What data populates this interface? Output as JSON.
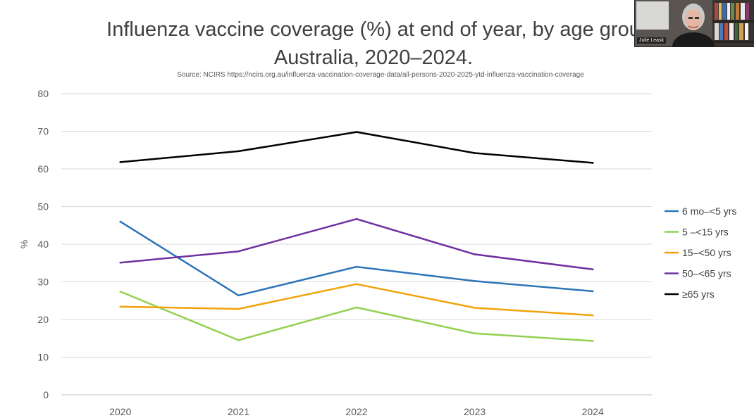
{
  "slide": {
    "title_line1": "Influenza vaccine coverage (%) at end of year, by age grou",
    "title_line2": "Australia, 2020–2024.",
    "source": "Source: NCIRS https://ncirs.org.au/influenza-vaccination-coverage-data/all-persons-2020-2025-ytd-influenza-vaccination-coverage"
  },
  "webcam": {
    "participant_name": "Julie Leask",
    "icon": "participant-video-icon"
  },
  "chart_data": {
    "type": "line",
    "title": "Influenza vaccine coverage (%) at end of year, by age grou Australia, 2020–2024.",
    "xlabel": "",
    "ylabel": "%",
    "categories": [
      "2020",
      "2021",
      "2022",
      "2023",
      "2024"
    ],
    "ylim": [
      0,
      80
    ],
    "yticks": [
      0,
      10,
      20,
      30,
      40,
      50,
      60,
      70,
      80
    ],
    "grid": true,
    "legend_position": "right",
    "series": [
      {
        "name": "6 mo–<5 yrs",
        "color": "#2e75b6",
        "values": [
          46,
          26.4,
          34,
          30.2,
          27.5
        ]
      },
      {
        "name": "5 –<15 yrs",
        "color": "#92d050",
        "values": [
          27.4,
          14.5,
          23.2,
          16.3,
          14.3
        ]
      },
      {
        "name": "15–<50 yrs",
        "color": "#f0a30a",
        "values": [
          23.4,
          22.8,
          29.4,
          23.1,
          21.1
        ]
      },
      {
        "name": "50–<65 yrs",
        "color": "#7030a0",
        "values": [
          35.1,
          38.1,
          46.7,
          37.3,
          33.3
        ]
      },
      {
        "name": "≥65 yrs",
        "color": "#000000",
        "values": [
          61.8,
          64.7,
          69.8,
          64.2,
          61.6
        ]
      }
    ]
  }
}
